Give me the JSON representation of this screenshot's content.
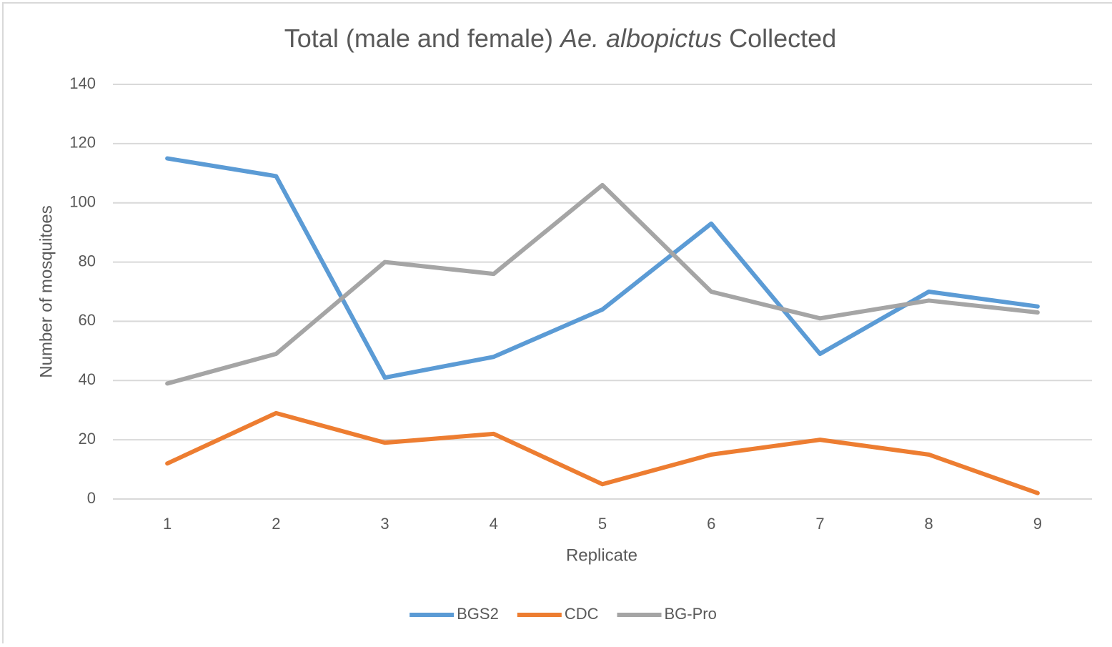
{
  "chart_data": {
    "type": "line",
    "title": [
      {
        "text": "Total (male and female) "
      },
      {
        "text": "Ae. albopictus",
        "italic": true
      },
      {
        "text": " Collected"
      }
    ],
    "x_label": "Replicate",
    "y_label": "Number of mosquitoes",
    "categories": [
      "1",
      "2",
      "3",
      "4",
      "5",
      "6",
      "7",
      "8",
      "9"
    ],
    "series": [
      {
        "name": "BGS2",
        "color": "#5b9bd5",
        "values": [
          115,
          109,
          41,
          48,
          64,
          93,
          49,
          70,
          65
        ]
      },
      {
        "name": "CDC",
        "color": "#ed7d31",
        "values": [
          12,
          29,
          19,
          22,
          5,
          15,
          20,
          15,
          2
        ]
      },
      {
        "name": "BG-Pro",
        "color": "#a5a5a5",
        "values": [
          39,
          49,
          80,
          76,
          106,
          70,
          61,
          67,
          63
        ]
      }
    ],
    "ylim": [
      0,
      140
    ],
    "yticks": [
      0,
      20,
      40,
      60,
      80,
      100,
      120,
      140
    ],
    "grid": true,
    "legend": "bottom"
  }
}
